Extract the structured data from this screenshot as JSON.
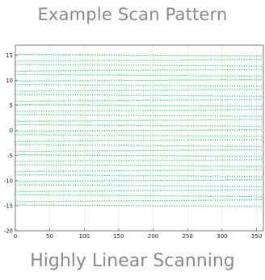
{
  "header": {
    "title": "Example Scan Pattern"
  },
  "footer": {
    "caption": "Highly Linear Scanning"
  },
  "chart_data": {
    "type": "scatter",
    "title": "",
    "xlabel": "",
    "ylabel": "",
    "xlim": [
      0,
      360
    ],
    "ylim": [
      -20,
      17
    ],
    "xticks": [
      0,
      50,
      100,
      150,
      200,
      250,
      300,
      350
    ],
    "yticks": [
      -20,
      -15,
      -10,
      -5,
      0,
      5,
      10,
      15
    ],
    "grid": true,
    "legend": "none",
    "series": [
      {
        "color": "#2fe07a",
        "marker": "dot",
        "x_range": [
          0,
          360
        ],
        "y_values_at_x0": [
          15,
          14,
          13,
          12,
          11,
          10,
          9,
          8,
          7,
          6,
          5,
          4,
          3,
          2,
          1,
          0,
          -1,
          -2,
          -3,
          -4,
          -5,
          -6,
          -7,
          -8,
          -9,
          -10,
          -11,
          -12,
          -13,
          -14,
          -15
        ],
        "y_values_at_x360": [
          15,
          14,
          13,
          12,
          11,
          10,
          9,
          8,
          7,
          6,
          5,
          4,
          3,
          2,
          1,
          0,
          -1,
          -2,
          -3,
          -4,
          -5,
          -6,
          -7,
          -8,
          -9,
          -10,
          -11,
          -12,
          -13,
          -14,
          -15
        ],
        "slope_per_360_deg": 0.35
      }
    ]
  }
}
